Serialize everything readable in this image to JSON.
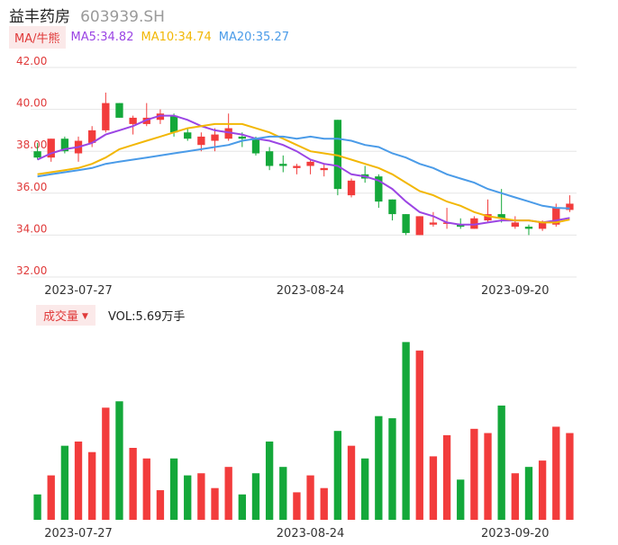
{
  "header": {
    "name": "益丰药房",
    "code": "603939.SH"
  },
  "ma_legend": {
    "toggle_label": "MA/牛熊",
    "items": [
      {
        "text": "MA5:34.82",
        "color": "#9b45e4"
      },
      {
        "text": "MA10:34.74",
        "color": "#f2b705"
      },
      {
        "text": "MA20:35.27",
        "color": "#4a9be8"
      }
    ]
  },
  "volume_legend": {
    "toggle_label": "成交量",
    "caret": "▼",
    "text": "VOL:5.69万手"
  },
  "colors": {
    "up": "#f23c3c",
    "down": "#14a83a",
    "grid": "#e6e6e6",
    "axis_text": "#e03a3a"
  },
  "chart_data": {
    "type": "candlestick",
    "y_axis": {
      "ticks": [
        "42.00",
        "40.00",
        "38.00",
        "36.00",
        "34.00",
        "32.00"
      ],
      "range": [
        32,
        42
      ]
    },
    "x_tick_labels": [
      {
        "label": "2023-07-27",
        "index": 3
      },
      {
        "label": "2023-08-24",
        "index": 20
      },
      {
        "label": "2023-09-20",
        "index": 35
      }
    ],
    "candles": [
      {
        "o": 38.0,
        "h": 38.4,
        "l": 37.6,
        "c": 37.7
      },
      {
        "o": 37.7,
        "h": 38.6,
        "l": 37.5,
        "c": 38.6
      },
      {
        "o": 38.6,
        "h": 38.7,
        "l": 37.9,
        "c": 38.0
      },
      {
        "o": 37.9,
        "h": 38.7,
        "l": 37.5,
        "c": 38.5
      },
      {
        "o": 38.4,
        "h": 39.2,
        "l": 38.2,
        "c": 39.0
      },
      {
        "o": 39.0,
        "h": 40.8,
        "l": 38.9,
        "c": 40.3
      },
      {
        "o": 40.3,
        "h": 40.3,
        "l": 39.6,
        "c": 39.6
      },
      {
        "o": 39.3,
        "h": 39.7,
        "l": 38.8,
        "c": 39.6
      },
      {
        "o": 39.3,
        "h": 40.3,
        "l": 39.2,
        "c": 39.6
      },
      {
        "o": 39.5,
        "h": 40.0,
        "l": 39.3,
        "c": 39.8
      },
      {
        "o": 39.7,
        "h": 39.8,
        "l": 38.7,
        "c": 38.9
      },
      {
        "o": 38.9,
        "h": 39.1,
        "l": 38.5,
        "c": 38.6
      },
      {
        "o": 38.3,
        "h": 38.9,
        "l": 38.0,
        "c": 38.7
      },
      {
        "o": 38.5,
        "h": 39.1,
        "l": 38.0,
        "c": 38.8
      },
      {
        "o": 38.6,
        "h": 39.8,
        "l": 38.5,
        "c": 39.1
      },
      {
        "o": 38.7,
        "h": 38.9,
        "l": 38.2,
        "c": 38.6
      },
      {
        "o": 38.6,
        "h": 38.7,
        "l": 37.8,
        "c": 37.9
      },
      {
        "o": 38.0,
        "h": 38.2,
        "l": 37.1,
        "c": 37.3
      },
      {
        "o": 37.4,
        "h": 37.8,
        "l": 37.0,
        "c": 37.3
      },
      {
        "o": 37.2,
        "h": 37.4,
        "l": 36.9,
        "c": 37.3
      },
      {
        "o": 37.3,
        "h": 37.6,
        "l": 36.9,
        "c": 37.5
      },
      {
        "o": 37.1,
        "h": 37.4,
        "l": 36.8,
        "c": 37.2
      },
      {
        "o": 39.5,
        "h": 39.5,
        "l": 35.9,
        "c": 36.2
      },
      {
        "o": 35.9,
        "h": 36.7,
        "l": 35.8,
        "c": 36.6
      },
      {
        "o": 36.9,
        "h": 37.3,
        "l": 36.5,
        "c": 36.7
      },
      {
        "o": 36.8,
        "h": 36.9,
        "l": 35.3,
        "c": 35.6
      },
      {
        "o": 35.7,
        "h": 35.7,
        "l": 34.7,
        "c": 35.0
      },
      {
        "o": 35.0,
        "h": 35.0,
        "l": 34.0,
        "c": 34.1
      },
      {
        "o": 34.0,
        "h": 34.9,
        "l": 34.0,
        "c": 34.9
      },
      {
        "o": 34.5,
        "h": 35.1,
        "l": 34.4,
        "c": 34.6
      },
      {
        "o": 34.6,
        "h": 35.3,
        "l": 34.3,
        "c": 34.6
      },
      {
        "o": 34.5,
        "h": 34.8,
        "l": 34.3,
        "c": 34.4
      },
      {
        "o": 34.3,
        "h": 34.9,
        "l": 34.3,
        "c": 34.8
      },
      {
        "o": 34.7,
        "h": 35.7,
        "l": 34.6,
        "c": 35.0
      },
      {
        "o": 35.0,
        "h": 36.2,
        "l": 34.6,
        "c": 34.8
      },
      {
        "o": 34.4,
        "h": 34.9,
        "l": 34.3,
        "c": 34.6
      },
      {
        "o": 34.4,
        "h": 34.5,
        "l": 34.0,
        "c": 34.3
      },
      {
        "o": 34.3,
        "h": 34.7,
        "l": 34.2,
        "c": 34.6
      },
      {
        "o": 34.5,
        "h": 35.5,
        "l": 34.4,
        "c": 35.3
      },
      {
        "o": 35.2,
        "h": 35.9,
        "l": 35.1,
        "c": 35.5
      }
    ],
    "ma5": [
      37.6,
      37.9,
      38.1,
      38.2,
      38.4,
      38.8,
      39.0,
      39.2,
      39.5,
      39.7,
      39.7,
      39.5,
      39.2,
      39.0,
      38.9,
      38.8,
      38.6,
      38.5,
      38.3,
      38.0,
      37.6,
      37.4,
      37.3,
      36.9,
      36.8,
      36.6,
      36.2,
      35.6,
      35.1,
      34.9,
      34.6,
      34.5,
      34.5,
      34.6,
      34.7,
      34.7,
      34.7,
      34.6,
      34.7,
      34.82
    ],
    "ma10": [
      36.9,
      37.0,
      37.1,
      37.2,
      37.4,
      37.7,
      38.1,
      38.3,
      38.5,
      38.7,
      38.9,
      39.1,
      39.2,
      39.3,
      39.3,
      39.3,
      39.1,
      38.9,
      38.6,
      38.3,
      38.0,
      37.9,
      37.8,
      37.6,
      37.4,
      37.2,
      36.9,
      36.5,
      36.1,
      35.9,
      35.6,
      35.4,
      35.1,
      34.9,
      34.8,
      34.7,
      34.7,
      34.6,
      34.6,
      34.74
    ],
    "ma20": [
      36.8,
      36.9,
      37.0,
      37.1,
      37.2,
      37.4,
      37.5,
      37.6,
      37.7,
      37.8,
      37.9,
      38.0,
      38.1,
      38.2,
      38.3,
      38.5,
      38.6,
      38.7,
      38.7,
      38.6,
      38.7,
      38.6,
      38.6,
      38.5,
      38.3,
      38.2,
      37.9,
      37.7,
      37.4,
      37.2,
      36.9,
      36.7,
      36.5,
      36.2,
      36.0,
      35.8,
      35.6,
      35.4,
      35.3,
      35.27
    ]
  },
  "volume_data": {
    "values": [
      12,
      21,
      35,
      37,
      32,
      53,
      56,
      34,
      29,
      14,
      29,
      21,
      22,
      15,
      25,
      12,
      22,
      37,
      25,
      13,
      21,
      15,
      42,
      35,
      29,
      49,
      48,
      84,
      80,
      30,
      40,
      19,
      43,
      41,
      54,
      22,
      25,
      28,
      44,
      41
    ],
    "max": 85
  }
}
